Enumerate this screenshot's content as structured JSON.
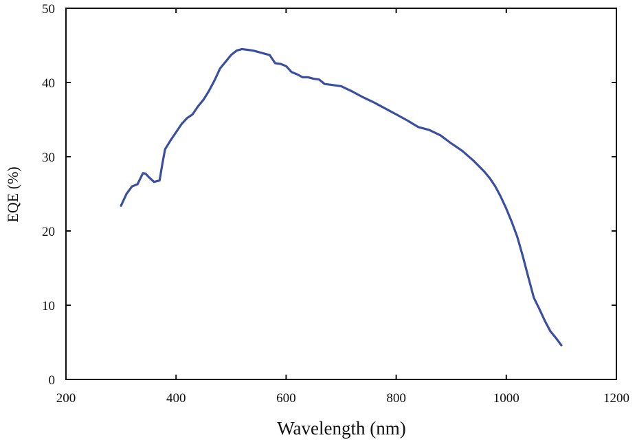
{
  "chart_data": {
    "type": "line",
    "title": "",
    "xlabel": "Wavelength (nm)",
    "ylabel": "EQE (%)",
    "xlim": [
      200,
      1200
    ],
    "ylim": [
      0,
      50
    ],
    "xticks": [
      200,
      400,
      600,
      800,
      1000,
      1200
    ],
    "yticks": [
      0,
      10,
      20,
      30,
      40,
      50
    ],
    "grid": false,
    "series": [
      {
        "name": "EQE",
        "color": "#3a4fa0",
        "x": [
          300,
          310,
          320,
          330,
          340,
          345,
          350,
          360,
          370,
          375,
          380,
          390,
          400,
          410,
          420,
          430,
          440,
          450,
          460,
          470,
          480,
          490,
          500,
          510,
          520,
          530,
          540,
          550,
          560,
          570,
          580,
          590,
          600,
          610,
          620,
          630,
          640,
          650,
          660,
          670,
          680,
          690,
          700,
          720,
          740,
          760,
          780,
          800,
          820,
          840,
          860,
          880,
          900,
          920,
          940,
          960,
          970,
          980,
          990,
          1000,
          1010,
          1020,
          1030,
          1040,
          1050,
          1060,
          1070,
          1080,
          1090,
          1100
        ],
        "values": [
          23.4,
          25.0,
          26.0,
          26.3,
          27.8,
          27.7,
          27.3,
          26.6,
          26.8,
          29.0,
          31.0,
          32.2,
          33.3,
          34.4,
          35.2,
          35.7,
          36.8,
          37.7,
          38.9,
          40.3,
          41.9,
          42.8,
          43.7,
          44.3,
          44.5,
          44.4,
          44.3,
          44.1,
          43.9,
          43.7,
          42.6,
          42.5,
          42.2,
          41.4,
          41.1,
          40.7,
          40.7,
          40.5,
          40.4,
          39.8,
          39.7,
          39.6,
          39.5,
          38.8,
          38.0,
          37.3,
          36.5,
          35.7,
          34.9,
          34.0,
          33.6,
          32.9,
          31.8,
          30.8,
          29.5,
          28.0,
          27.1,
          26.0,
          24.6,
          23.0,
          21.2,
          19.2,
          16.6,
          13.8,
          11.0,
          9.5,
          7.9,
          6.5,
          5.6,
          4.6
        ]
      }
    ]
  }
}
